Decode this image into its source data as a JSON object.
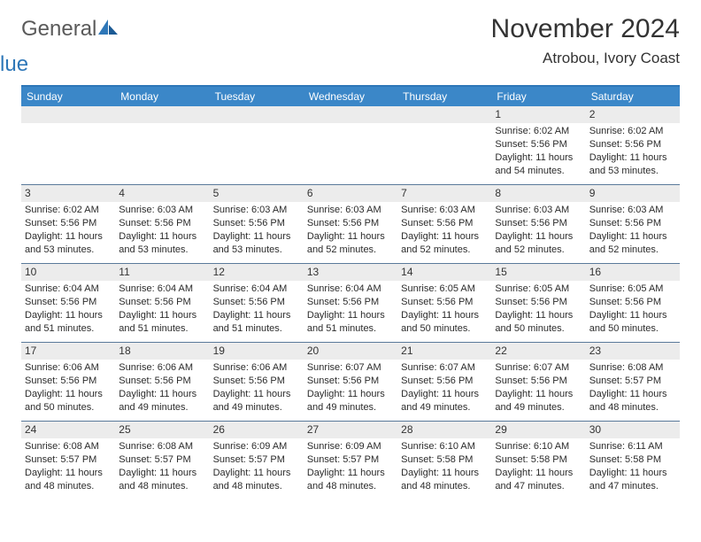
{
  "logo": {
    "text1": "General",
    "text2": "Blue"
  },
  "title": "November 2024",
  "location": "Atrobou, Ivory Coast",
  "colors": {
    "header_bg": "#3b87c8",
    "header_border_top": "#2e77b8",
    "week_divider": "#5a7a9a",
    "daynum_bg": "#ececec",
    "text": "#333333"
  },
  "weekdays": [
    "Sunday",
    "Monday",
    "Tuesday",
    "Wednesday",
    "Thursday",
    "Friday",
    "Saturday"
  ],
  "weeks": [
    [
      {
        "day": "",
        "sunrise": "",
        "sunset": "",
        "daylight": ""
      },
      {
        "day": "",
        "sunrise": "",
        "sunset": "",
        "daylight": ""
      },
      {
        "day": "",
        "sunrise": "",
        "sunset": "",
        "daylight": ""
      },
      {
        "day": "",
        "sunrise": "",
        "sunset": "",
        "daylight": ""
      },
      {
        "day": "",
        "sunrise": "",
        "sunset": "",
        "daylight": ""
      },
      {
        "day": "1",
        "sunrise": "Sunrise: 6:02 AM",
        "sunset": "Sunset: 5:56 PM",
        "daylight": "Daylight: 11 hours and 54 minutes."
      },
      {
        "day": "2",
        "sunrise": "Sunrise: 6:02 AM",
        "sunset": "Sunset: 5:56 PM",
        "daylight": "Daylight: 11 hours and 53 minutes."
      }
    ],
    [
      {
        "day": "3",
        "sunrise": "Sunrise: 6:02 AM",
        "sunset": "Sunset: 5:56 PM",
        "daylight": "Daylight: 11 hours and 53 minutes."
      },
      {
        "day": "4",
        "sunrise": "Sunrise: 6:03 AM",
        "sunset": "Sunset: 5:56 PM",
        "daylight": "Daylight: 11 hours and 53 minutes."
      },
      {
        "day": "5",
        "sunrise": "Sunrise: 6:03 AM",
        "sunset": "Sunset: 5:56 PM",
        "daylight": "Daylight: 11 hours and 53 minutes."
      },
      {
        "day": "6",
        "sunrise": "Sunrise: 6:03 AM",
        "sunset": "Sunset: 5:56 PM",
        "daylight": "Daylight: 11 hours and 52 minutes."
      },
      {
        "day": "7",
        "sunrise": "Sunrise: 6:03 AM",
        "sunset": "Sunset: 5:56 PM",
        "daylight": "Daylight: 11 hours and 52 minutes."
      },
      {
        "day": "8",
        "sunrise": "Sunrise: 6:03 AM",
        "sunset": "Sunset: 5:56 PM",
        "daylight": "Daylight: 11 hours and 52 minutes."
      },
      {
        "day": "9",
        "sunrise": "Sunrise: 6:03 AM",
        "sunset": "Sunset: 5:56 PM",
        "daylight": "Daylight: 11 hours and 52 minutes."
      }
    ],
    [
      {
        "day": "10",
        "sunrise": "Sunrise: 6:04 AM",
        "sunset": "Sunset: 5:56 PM",
        "daylight": "Daylight: 11 hours and 51 minutes."
      },
      {
        "day": "11",
        "sunrise": "Sunrise: 6:04 AM",
        "sunset": "Sunset: 5:56 PM",
        "daylight": "Daylight: 11 hours and 51 minutes."
      },
      {
        "day": "12",
        "sunrise": "Sunrise: 6:04 AM",
        "sunset": "Sunset: 5:56 PM",
        "daylight": "Daylight: 11 hours and 51 minutes."
      },
      {
        "day": "13",
        "sunrise": "Sunrise: 6:04 AM",
        "sunset": "Sunset: 5:56 PM",
        "daylight": "Daylight: 11 hours and 51 minutes."
      },
      {
        "day": "14",
        "sunrise": "Sunrise: 6:05 AM",
        "sunset": "Sunset: 5:56 PM",
        "daylight": "Daylight: 11 hours and 50 minutes."
      },
      {
        "day": "15",
        "sunrise": "Sunrise: 6:05 AM",
        "sunset": "Sunset: 5:56 PM",
        "daylight": "Daylight: 11 hours and 50 minutes."
      },
      {
        "day": "16",
        "sunrise": "Sunrise: 6:05 AM",
        "sunset": "Sunset: 5:56 PM",
        "daylight": "Daylight: 11 hours and 50 minutes."
      }
    ],
    [
      {
        "day": "17",
        "sunrise": "Sunrise: 6:06 AM",
        "sunset": "Sunset: 5:56 PM",
        "daylight": "Daylight: 11 hours and 50 minutes."
      },
      {
        "day": "18",
        "sunrise": "Sunrise: 6:06 AM",
        "sunset": "Sunset: 5:56 PM",
        "daylight": "Daylight: 11 hours and 49 minutes."
      },
      {
        "day": "19",
        "sunrise": "Sunrise: 6:06 AM",
        "sunset": "Sunset: 5:56 PM",
        "daylight": "Daylight: 11 hours and 49 minutes."
      },
      {
        "day": "20",
        "sunrise": "Sunrise: 6:07 AM",
        "sunset": "Sunset: 5:56 PM",
        "daylight": "Daylight: 11 hours and 49 minutes."
      },
      {
        "day": "21",
        "sunrise": "Sunrise: 6:07 AM",
        "sunset": "Sunset: 5:56 PM",
        "daylight": "Daylight: 11 hours and 49 minutes."
      },
      {
        "day": "22",
        "sunrise": "Sunrise: 6:07 AM",
        "sunset": "Sunset: 5:56 PM",
        "daylight": "Daylight: 11 hours and 49 minutes."
      },
      {
        "day": "23",
        "sunrise": "Sunrise: 6:08 AM",
        "sunset": "Sunset: 5:57 PM",
        "daylight": "Daylight: 11 hours and 48 minutes."
      }
    ],
    [
      {
        "day": "24",
        "sunrise": "Sunrise: 6:08 AM",
        "sunset": "Sunset: 5:57 PM",
        "daylight": "Daylight: 11 hours and 48 minutes."
      },
      {
        "day": "25",
        "sunrise": "Sunrise: 6:08 AM",
        "sunset": "Sunset: 5:57 PM",
        "daylight": "Daylight: 11 hours and 48 minutes."
      },
      {
        "day": "26",
        "sunrise": "Sunrise: 6:09 AM",
        "sunset": "Sunset: 5:57 PM",
        "daylight": "Daylight: 11 hours and 48 minutes."
      },
      {
        "day": "27",
        "sunrise": "Sunrise: 6:09 AM",
        "sunset": "Sunset: 5:57 PM",
        "daylight": "Daylight: 11 hours and 48 minutes."
      },
      {
        "day": "28",
        "sunrise": "Sunrise: 6:10 AM",
        "sunset": "Sunset: 5:58 PM",
        "daylight": "Daylight: 11 hours and 48 minutes."
      },
      {
        "day": "29",
        "sunrise": "Sunrise: 6:10 AM",
        "sunset": "Sunset: 5:58 PM",
        "daylight": "Daylight: 11 hours and 47 minutes."
      },
      {
        "day": "30",
        "sunrise": "Sunrise: 6:11 AM",
        "sunset": "Sunset: 5:58 PM",
        "daylight": "Daylight: 11 hours and 47 minutes."
      }
    ]
  ]
}
